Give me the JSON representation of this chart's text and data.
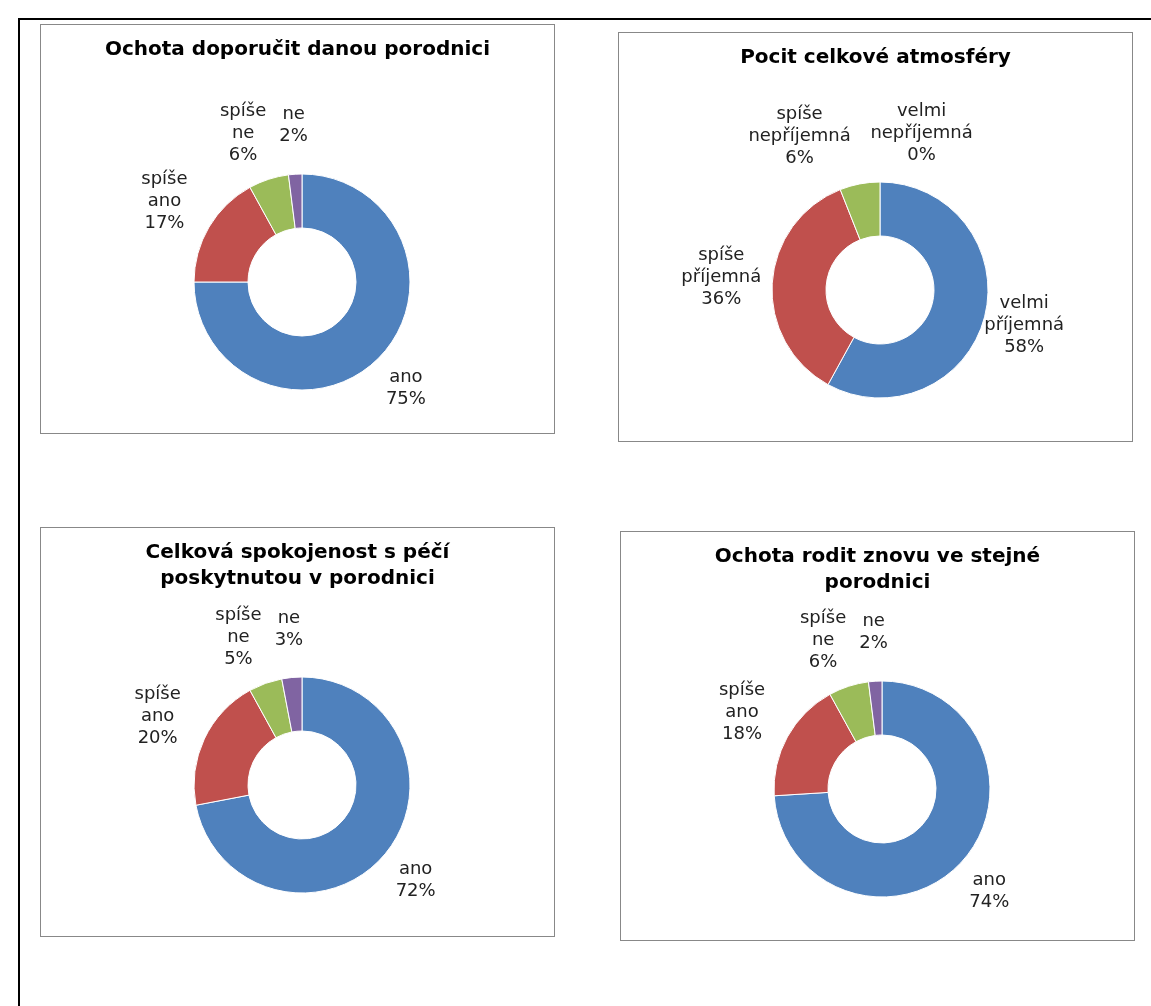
{
  "chart_data": [
    {
      "type": "donut",
      "title": "Ochota doporučit danou porodnici",
      "categories": [
        "ano",
        "spíše ano",
        "spíše ne",
        "ne"
      ],
      "values": [
        75,
        17,
        6,
        2
      ],
      "value_labels": [
        "75%",
        "17%",
        "6%",
        "2%"
      ],
      "colors": [
        "#4f81bd",
        "#c0504d",
        "#9bbb59",
        "#8064a2"
      ]
    },
    {
      "type": "donut",
      "title": "Pocit celkové atmosféry",
      "categories": [
        "velmi příjemná",
        "spíše příjemná",
        "spíše nepříjemná",
        "velmi nepříjemná"
      ],
      "values": [
        58,
        36,
        6,
        0
      ],
      "value_labels": [
        "58%",
        "36%",
        "6%",
        "0%"
      ],
      "colors": [
        "#4f81bd",
        "#c0504d",
        "#9bbb59",
        "#8064a2"
      ]
    },
    {
      "type": "donut",
      "title": "Celková spokojenost s péčí poskytnutou v porodnici",
      "categories": [
        "ano",
        "spíše ano",
        "spíše ne",
        "ne"
      ],
      "values": [
        72,
        20,
        5,
        3
      ],
      "value_labels": [
        "72%",
        "20%",
        "5%",
        "3%"
      ],
      "colors": [
        "#4f81bd",
        "#c0504d",
        "#9bbb59",
        "#8064a2"
      ]
    },
    {
      "type": "donut",
      "title": "Ochota rodit znovu ve stejné porodnici",
      "categories": [
        "ano",
        "spíše ano",
        "spíše ne",
        "ne"
      ],
      "values": [
        74,
        18,
        6,
        2
      ],
      "value_labels": [
        "74%",
        "18%",
        "6%",
        "2%"
      ],
      "colors": [
        "#4f81bd",
        "#c0504d",
        "#9bbb59",
        "#8064a2"
      ]
    }
  ]
}
